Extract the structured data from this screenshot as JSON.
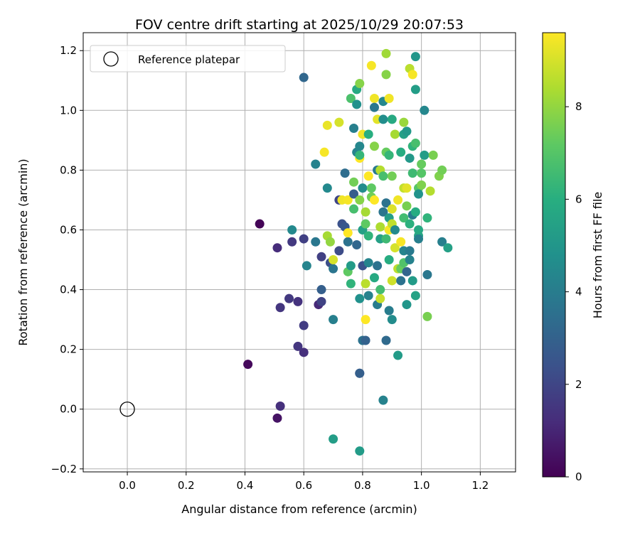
{
  "chart_data": {
    "type": "scatter",
    "title": "FOV centre drift starting at 2025/10/29 20:07:53",
    "xlabel": "Angular distance from reference (arcmin)",
    "ylabel": "Rotation from reference (arcmin)",
    "colorbar_label": "Hours from first FF file",
    "xlim": [
      -0.15,
      1.32
    ],
    "ylim": [
      -0.21,
      1.26
    ],
    "x_ticks": [
      0.0,
      0.2,
      0.4,
      0.6,
      0.8,
      1.0,
      1.2
    ],
    "x_tick_labels": [
      "0.0",
      "0.2",
      "0.4",
      "0.6",
      "0.8",
      "1.0",
      "1.2"
    ],
    "y_ticks": [
      -0.2,
      0.0,
      0.2,
      0.4,
      0.6,
      0.8,
      1.0,
      1.2
    ],
    "y_tick_labels": [
      "−0.2",
      "0.0",
      "0.2",
      "0.4",
      "0.6",
      "0.8",
      "1.0",
      "1.2"
    ],
    "colorbar_range": [
      0,
      9.6
    ],
    "colorbar_ticks": [
      0,
      2,
      4,
      6,
      8
    ],
    "colorbar_tick_labels": [
      "0",
      "2",
      "4",
      "6",
      "8"
    ],
    "colormap": "viridis",
    "grid": true,
    "legend": {
      "entries": [
        "Reference platepar"
      ],
      "position": "top-left"
    },
    "reference_point": {
      "x": 0.0,
      "y": 0.0,
      "label": "Reference platepar"
    },
    "points": [
      {
        "x": 0.45,
        "y": 0.62,
        "t": 0.1
      },
      {
        "x": 0.41,
        "y": 0.15,
        "t": 0.2
      },
      {
        "x": 0.51,
        "y": -0.03,
        "t": 0.5
      },
      {
        "x": 0.52,
        "y": 0.01,
        "t": 1.3
      },
      {
        "x": 0.51,
        "y": 0.54,
        "t": 1.2
      },
      {
        "x": 0.52,
        "y": 0.34,
        "t": 1.5
      },
      {
        "x": 0.55,
        "y": 0.37,
        "t": 1.6
      },
      {
        "x": 0.56,
        "y": 0.56,
        "t": 1.6
      },
      {
        "x": 0.58,
        "y": 0.36,
        "t": 1.4
      },
      {
        "x": 0.58,
        "y": 0.21,
        "t": 1.5
      },
      {
        "x": 0.6,
        "y": 0.19,
        "t": 1.3
      },
      {
        "x": 0.6,
        "y": 0.28,
        "t": 1.7
      },
      {
        "x": 0.6,
        "y": 0.57,
        "t": 1.8
      },
      {
        "x": 0.6,
        "y": 1.11,
        "t": 3.2
      },
      {
        "x": 0.56,
        "y": 0.6,
        "t": 4.5
      },
      {
        "x": 0.61,
        "y": 0.48,
        "t": 4.3
      },
      {
        "x": 0.65,
        "y": 0.35,
        "t": 1.1
      },
      {
        "x": 0.66,
        "y": 0.36,
        "t": 1.9
      },
      {
        "x": 0.66,
        "y": 0.4,
        "t": 2.9
      },
      {
        "x": 0.66,
        "y": 0.51,
        "t": 1.8
      },
      {
        "x": 0.64,
        "y": 0.56,
        "t": 3.8
      },
      {
        "x": 0.64,
        "y": 0.82,
        "t": 4.2
      },
      {
        "x": 0.68,
        "y": 0.74,
        "t": 4.5
      },
      {
        "x": 0.69,
        "y": 0.49,
        "t": 2.3
      },
      {
        "x": 0.7,
        "y": 0.47,
        "t": 3.7
      },
      {
        "x": 0.7,
        "y": 0.3,
        "t": 4.1
      },
      {
        "x": 0.7,
        "y": 0.5,
        "t": 9.0
      },
      {
        "x": 0.7,
        "y": -0.1,
        "t": 5.3
      },
      {
        "x": 0.67,
        "y": 0.86,
        "t": 9.5
      },
      {
        "x": 0.68,
        "y": 0.95,
        "t": 9.3
      },
      {
        "x": 0.72,
        "y": 0.96,
        "t": 9.0
      },
      {
        "x": 0.68,
        "y": 0.58,
        "t": 8.3
      },
      {
        "x": 0.69,
        "y": 0.56,
        "t": 8.0
      },
      {
        "x": 0.72,
        "y": 0.53,
        "t": 2.2
      },
      {
        "x": 0.72,
        "y": 0.7,
        "t": 2.0
      },
      {
        "x": 0.73,
        "y": 0.62,
        "t": 2.4
      },
      {
        "x": 0.74,
        "y": 0.61,
        "t": 2.6
      },
      {
        "x": 0.73,
        "y": 0.7,
        "t": 9.4
      },
      {
        "x": 0.75,
        "y": 0.7,
        "t": 9.5
      },
      {
        "x": 0.74,
        "y": 0.79,
        "t": 3.4
      },
      {
        "x": 0.75,
        "y": 0.56,
        "t": 3.6
      },
      {
        "x": 0.75,
        "y": 0.59,
        "t": 9.6
      },
      {
        "x": 0.75,
        "y": 0.46,
        "t": 7.2
      },
      {
        "x": 0.76,
        "y": 0.48,
        "t": 5.2
      },
      {
        "x": 0.76,
        "y": 0.42,
        "t": 6.2
      },
      {
        "x": 0.77,
        "y": 0.94,
        "t": 4.1
      },
      {
        "x": 0.77,
        "y": 0.72,
        "t": 2.8
      },
      {
        "x": 0.77,
        "y": 0.67,
        "t": 6.7
      },
      {
        "x": 0.77,
        "y": 0.76,
        "t": 7.5
      },
      {
        "x": 0.78,
        "y": 0.55,
        "t": 3.2
      },
      {
        "x": 0.78,
        "y": 0.86,
        "t": 4.3
      },
      {
        "x": 0.76,
        "y": 1.04,
        "t": 6.8
      },
      {
        "x": 0.78,
        "y": 1.07,
        "t": 5.8
      },
      {
        "x": 0.78,
        "y": 1.02,
        "t": 4.8
      },
      {
        "x": 0.79,
        "y": 1.09,
        "t": 7.8
      },
      {
        "x": 0.79,
        "y": 0.88,
        "t": 4.4
      },
      {
        "x": 0.79,
        "y": 0.84,
        "t": 9.6
      },
      {
        "x": 0.79,
        "y": 0.85,
        "t": 6.3
      },
      {
        "x": 0.79,
        "y": 0.7,
        "t": 7.8
      },
      {
        "x": 0.8,
        "y": 0.74,
        "t": 4.6
      },
      {
        "x": 0.79,
        "y": 0.12,
        "t": 2.6
      },
      {
        "x": 0.79,
        "y": 0.12,
        "t": 2.9
      },
      {
        "x": 0.79,
        "y": -0.14,
        "t": 5.2
      },
      {
        "x": 0.79,
        "y": 0.37,
        "t": 4.8
      },
      {
        "x": 0.8,
        "y": 0.48,
        "t": 2.4
      },
      {
        "x": 0.8,
        "y": 0.6,
        "t": 5.4
      },
      {
        "x": 0.8,
        "y": 0.92,
        "t": 9.4
      },
      {
        "x": 0.81,
        "y": 0.62,
        "t": 7.2
      },
      {
        "x": 0.81,
        "y": 0.3,
        "t": 9.6
      },
      {
        "x": 0.8,
        "y": 0.23,
        "t": 3.6
      },
      {
        "x": 0.81,
        "y": 0.23,
        "t": 3.0
      },
      {
        "x": 0.81,
        "y": 0.66,
        "t": 8.3
      },
      {
        "x": 0.81,
        "y": 0.42,
        "t": 8.6
      },
      {
        "x": 0.82,
        "y": 0.38,
        "t": 4.2
      },
      {
        "x": 0.82,
        "y": 0.49,
        "t": 4.3
      },
      {
        "x": 0.82,
        "y": 0.58,
        "t": 6.2
      },
      {
        "x": 0.82,
        "y": 0.78,
        "t": 9.6
      },
      {
        "x": 0.82,
        "y": 0.92,
        "t": 6.0
      },
      {
        "x": 0.83,
        "y": 0.74,
        "t": 7.2
      },
      {
        "x": 0.83,
        "y": 0.71,
        "t": 7.5
      },
      {
        "x": 0.83,
        "y": 1.15,
        "t": 9.5
      },
      {
        "x": 0.84,
        "y": 1.04,
        "t": 9.4
      },
      {
        "x": 0.84,
        "y": 0.88,
        "t": 7.8
      },
      {
        "x": 0.84,
        "y": 0.7,
        "t": 9.6
      },
      {
        "x": 0.84,
        "y": 0.44,
        "t": 5.8
      },
      {
        "x": 0.85,
        "y": 0.35,
        "t": 4.0
      },
      {
        "x": 0.84,
        "y": 1.01,
        "t": 3.8
      },
      {
        "x": 0.85,
        "y": 0.97,
        "t": 9.2
      },
      {
        "x": 0.85,
        "y": 0.8,
        "t": 3.9
      },
      {
        "x": 0.85,
        "y": 0.48,
        "t": 3.6
      },
      {
        "x": 0.86,
        "y": 0.61,
        "t": 8.4
      },
      {
        "x": 0.86,
        "y": 0.57,
        "t": 5.4
      },
      {
        "x": 0.86,
        "y": 0.37,
        "t": 8.8
      },
      {
        "x": 0.86,
        "y": 0.4,
        "t": 6.6
      },
      {
        "x": 0.86,
        "y": 0.8,
        "t": 8.5
      },
      {
        "x": 0.87,
        "y": 0.78,
        "t": 6.7
      },
      {
        "x": 0.87,
        "y": 0.97,
        "t": 4.7
      },
      {
        "x": 0.87,
        "y": 1.03,
        "t": 4.4
      },
      {
        "x": 0.87,
        "y": 0.66,
        "t": 3.7
      },
      {
        "x": 0.87,
        "y": 0.03,
        "t": 4.2
      },
      {
        "x": 0.88,
        "y": 1.19,
        "t": 8.2
      },
      {
        "x": 0.88,
        "y": 1.12,
        "t": 7.8
      },
      {
        "x": 0.88,
        "y": 0.57,
        "t": 6.5
      },
      {
        "x": 0.88,
        "y": 0.23,
        "t": 3.3
      },
      {
        "x": 0.88,
        "y": 0.69,
        "t": 3.6
      },
      {
        "x": 0.88,
        "y": 0.86,
        "t": 7.3
      },
      {
        "x": 0.89,
        "y": 1.04,
        "t": 9.4
      },
      {
        "x": 0.89,
        "y": 0.33,
        "t": 4.0
      },
      {
        "x": 0.89,
        "y": 0.6,
        "t": 9.5
      },
      {
        "x": 0.89,
        "y": 0.5,
        "t": 5.9
      },
      {
        "x": 0.89,
        "y": 0.64,
        "t": 5.3
      },
      {
        "x": 0.89,
        "y": 0.85,
        "t": 6.3
      },
      {
        "x": 0.9,
        "y": 0.62,
        "t": 8.7
      },
      {
        "x": 0.9,
        "y": 0.67,
        "t": 9.1
      },
      {
        "x": 0.9,
        "y": 0.78,
        "t": 7.5
      },
      {
        "x": 0.9,
        "y": 0.97,
        "t": 5.8
      },
      {
        "x": 0.9,
        "y": 0.3,
        "t": 4.6
      },
      {
        "x": 0.9,
        "y": 0.43,
        "t": 8.9
      },
      {
        "x": 0.91,
        "y": 0.92,
        "t": 8.3
      },
      {
        "x": 0.91,
        "y": 0.6,
        "t": 4.5
      },
      {
        "x": 0.91,
        "y": 0.54,
        "t": 9.0
      },
      {
        "x": 0.92,
        "y": 0.47,
        "t": 8.6
      },
      {
        "x": 0.92,
        "y": 0.18,
        "t": 5.2
      },
      {
        "x": 0.92,
        "y": 0.7,
        "t": 9.4
      },
      {
        "x": 0.93,
        "y": 0.86,
        "t": 5.9
      },
      {
        "x": 0.93,
        "y": 0.47,
        "t": 7.3
      },
      {
        "x": 0.93,
        "y": 0.43,
        "t": 3.6
      },
      {
        "x": 0.93,
        "y": 0.56,
        "t": 9.5
      },
      {
        "x": 0.94,
        "y": 0.96,
        "t": 8.1
      },
      {
        "x": 0.94,
        "y": 0.64,
        "t": 6.6
      },
      {
        "x": 0.94,
        "y": 0.53,
        "t": 4.3
      },
      {
        "x": 0.94,
        "y": 0.74,
        "t": 8.7
      },
      {
        "x": 0.94,
        "y": 0.92,
        "t": 5.4
      },
      {
        "x": 0.94,
        "y": 0.49,
        "t": 6.9
      },
      {
        "x": 0.95,
        "y": 0.93,
        "t": 5.1
      },
      {
        "x": 0.95,
        "y": 0.46,
        "t": 3.1
      },
      {
        "x": 0.95,
        "y": 0.35,
        "t": 5.0
      },
      {
        "x": 0.95,
        "y": 0.68,
        "t": 7.6
      },
      {
        "x": 0.95,
        "y": 0.74,
        "t": 9.2
      },
      {
        "x": 0.96,
        "y": 0.53,
        "t": 3.9
      },
      {
        "x": 0.96,
        "y": 0.84,
        "t": 5.1
      },
      {
        "x": 0.96,
        "y": 0.62,
        "t": 6.1
      },
      {
        "x": 0.96,
        "y": 0.5,
        "t": 4.2
      },
      {
        "x": 0.96,
        "y": 1.14,
        "t": 8.6
      },
      {
        "x": 0.97,
        "y": 0.88,
        "t": 6.2
      },
      {
        "x": 0.97,
        "y": 1.12,
        "t": 9.5
      },
      {
        "x": 0.97,
        "y": 0.43,
        "t": 5.2
      },
      {
        "x": 0.97,
        "y": 0.65,
        "t": 4.0
      },
      {
        "x": 0.97,
        "y": 0.79,
        "t": 6.5
      },
      {
        "x": 0.98,
        "y": 0.89,
        "t": 6.7
      },
      {
        "x": 0.98,
        "y": 1.07,
        "t": 5.3
      },
      {
        "x": 0.98,
        "y": 1.18,
        "t": 5.0
      },
      {
        "x": 0.98,
        "y": 0.38,
        "t": 5.5
      },
      {
        "x": 0.98,
        "y": 0.66,
        "t": 5.9
      },
      {
        "x": 0.99,
        "y": 0.58,
        "t": 5.6
      },
      {
        "x": 0.99,
        "y": 0.74,
        "t": 7.0
      },
      {
        "x": 0.99,
        "y": 0.57,
        "t": 4.1
      },
      {
        "x": 0.99,
        "y": 0.72,
        "t": 4.9
      },
      {
        "x": 1.0,
        "y": 0.82,
        "t": 7.3
      },
      {
        "x": 1.0,
        "y": 0.75,
        "t": 7.7
      },
      {
        "x": 1.0,
        "y": 0.79,
        "t": 7.0
      },
      {
        "x": 1.01,
        "y": 1.0,
        "t": 4.4
      },
      {
        "x": 1.01,
        "y": 0.85,
        "t": 5.3
      },
      {
        "x": 1.02,
        "y": 0.31,
        "t": 7.6
      },
      {
        "x": 1.02,
        "y": 0.45,
        "t": 3.8
      },
      {
        "x": 1.02,
        "y": 0.64,
        "t": 6.2
      },
      {
        "x": 1.03,
        "y": 0.73,
        "t": 8.5
      },
      {
        "x": 1.04,
        "y": 0.85,
        "t": 7.6
      },
      {
        "x": 1.06,
        "y": 0.78,
        "t": 7.7
      },
      {
        "x": 1.07,
        "y": 0.8,
        "t": 7.5
      },
      {
        "x": 1.07,
        "y": 0.56,
        "t": 4.1
      },
      {
        "x": 1.09,
        "y": 0.54,
        "t": 5.4
      },
      {
        "x": 0.99,
        "y": 0.6,
        "t": 5.8
      }
    ]
  }
}
